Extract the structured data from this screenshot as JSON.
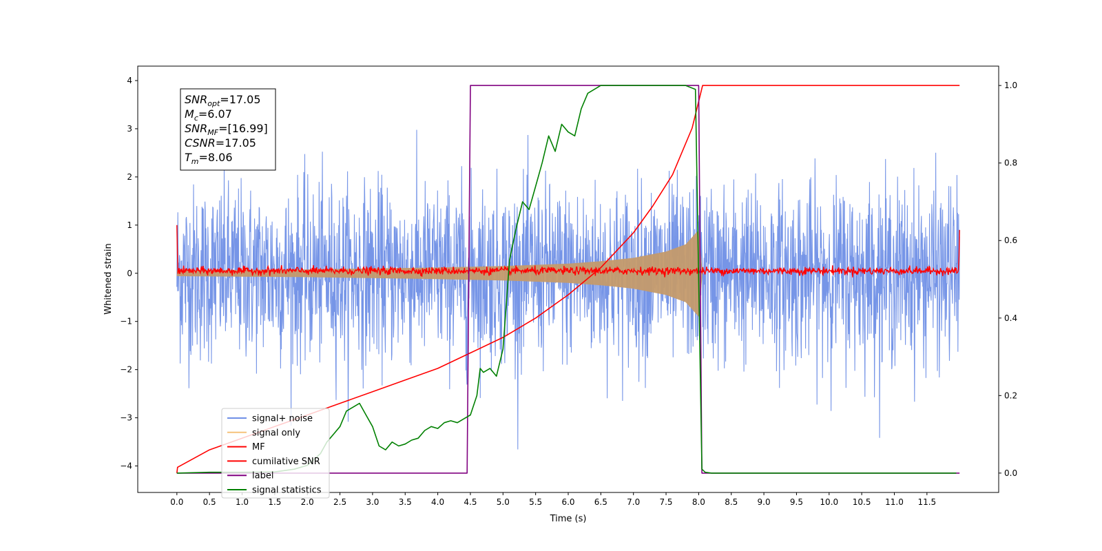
{
  "chart_data": {
    "type": "line",
    "title": "",
    "xlabel": "Time (s)",
    "ylabel": "Whitened strain",
    "ylabel_right": "",
    "xlim": [
      -0.6,
      12.6
    ],
    "ylim": [
      -4.55,
      4.3
    ],
    "ylim_right": [
      -0.05,
      1.05
    ],
    "x_ticks": [
      0.0,
      0.5,
      1.0,
      1.5,
      2.0,
      2.5,
      3.0,
      3.5,
      4.0,
      4.5,
      5.0,
      5.5,
      6.0,
      6.5,
      7.0,
      7.5,
      8.0,
      8.5,
      9.0,
      9.5,
      10.0,
      10.5,
      11.0,
      11.5
    ],
    "x_tick_labels": [
      "0.0",
      "0.5",
      "1.0",
      "1.5",
      "2.0",
      "2.5",
      "3.0",
      "3.5",
      "4.0",
      "4.5",
      "5.0",
      "5.5",
      "6.0",
      "6.5",
      "7.0",
      "7.5",
      "8.0",
      "8.5",
      "9.0",
      "9.5",
      "10.0",
      "10.5",
      "11.0",
      "11.5"
    ],
    "y_ticks": [
      -4,
      -3,
      -2,
      -1,
      0,
      1,
      2,
      3,
      4
    ],
    "y_tick_labels": [
      "−4",
      "−3",
      "−2",
      "−1",
      "0",
      "1",
      "2",
      "3",
      "4"
    ],
    "y_right_ticks": [
      0.0,
      0.2,
      0.4,
      0.6,
      0.8,
      1.0
    ],
    "y_right_tick_labels": [
      "0.0",
      "0.2",
      "0.4",
      "0.6",
      "0.8",
      "1.0"
    ],
    "legend_position": "lower-left",
    "legend": [
      {
        "label": "signal+ noise",
        "color": "#6f8fe6"
      },
      {
        "label": "signal only",
        "color": "#f5c27a"
      },
      {
        "label": "MF",
        "color": "#ff0000"
      },
      {
        "label": "cumilative SNR",
        "color": "#ff0000"
      },
      {
        "label": "label",
        "color": "#800080"
      },
      {
        "label": "signal statistics",
        "color": "#008000"
      }
    ],
    "annotations": [
      {
        "text": "SNR",
        "sub": "opt",
        "value": "=17.05"
      },
      {
        "text": "M",
        "sub": "c",
        "value": "=6.07"
      },
      {
        "text": "SNR",
        "sub": "MF",
        "value": "=[16.99]"
      },
      {
        "text": "CSNR",
        "sub": "",
        "value": "=17.05"
      },
      {
        "text": "T",
        "sub": "m",
        "value": "=8.06"
      }
    ],
    "series": [
      {
        "name": "signal+ noise",
        "axis": "left",
        "color": "#6f8fe6",
        "x_range": [
          0.0,
          12.0
        ],
        "center": 0.0,
        "typical_amplitude": 2.0,
        "peak_min": -4.05,
        "peak_max": 3.85
      },
      {
        "name": "signal only",
        "axis": "left",
        "color": "#f5c27a",
        "envelope": {
          "x": [
            0.0,
            1.0,
            2.0,
            3.0,
            4.0,
            5.0,
            6.0,
            6.5,
            7.0,
            7.5,
            7.8,
            8.0,
            8.06,
            12.0
          ],
          "amplitude": [
            0.06,
            0.07,
            0.08,
            0.1,
            0.12,
            0.15,
            0.2,
            0.25,
            0.32,
            0.45,
            0.6,
            0.9,
            0.0,
            0.0
          ]
        }
      },
      {
        "name": "MF",
        "axis": "left",
        "color": "#ff0000",
        "x_range": [
          0.0,
          12.0
        ],
        "center": 0.05,
        "noise_amplitude": 0.08,
        "edge_values": [
          1.0,
          0.9
        ]
      },
      {
        "name": "cumilative SNR",
        "axis": "right",
        "color": "#ff0000",
        "x": [
          0.0,
          0.01,
          0.5,
          1.0,
          1.5,
          2.0,
          2.5,
          3.0,
          3.5,
          4.0,
          4.5,
          5.0,
          5.5,
          6.0,
          6.5,
          7.0,
          7.3,
          7.6,
          7.9,
          8.06,
          8.5,
          9.0,
          10.0,
          11.0,
          12.0
        ],
        "values": [
          0.0,
          0.015,
          0.06,
          0.09,
          0.12,
          0.15,
          0.18,
          0.21,
          0.24,
          0.27,
          0.31,
          0.35,
          0.4,
          0.46,
          0.53,
          0.62,
          0.69,
          0.77,
          0.89,
          1.0,
          1.0,
          1.0,
          1.0,
          1.0,
          1.0
        ]
      },
      {
        "name": "label",
        "axis": "right",
        "color": "#800080",
        "x": [
          0.0,
          4.45,
          4.5,
          8.0,
          8.05,
          12.0
        ],
        "values": [
          0.0,
          0.0,
          1.0,
          1.0,
          0.0,
          0.0
        ]
      },
      {
        "name": "signal statistics",
        "axis": "right",
        "color": "#008000",
        "x": [
          0.0,
          0.5,
          1.0,
          1.5,
          1.8,
          2.0,
          2.2,
          2.3,
          2.4,
          2.5,
          2.6,
          2.7,
          2.8,
          2.9,
          3.0,
          3.1,
          3.2,
          3.3,
          3.4,
          3.5,
          3.6,
          3.7,
          3.8,
          3.9,
          4.0,
          4.1,
          4.2,
          4.3,
          4.4,
          4.5,
          4.6,
          4.65,
          4.7,
          4.8,
          4.9,
          5.0,
          5.1,
          5.2,
          5.3,
          5.4,
          5.5,
          5.6,
          5.7,
          5.8,
          5.9,
          6.0,
          6.1,
          6.2,
          6.3,
          6.5,
          7.0,
          7.5,
          7.8,
          7.95,
          8.0,
          8.05,
          8.1,
          8.2,
          9.0,
          10.0,
          11.0,
          11.95
        ],
        "values": [
          0.0,
          0.002,
          0.002,
          0.003,
          0.01,
          0.02,
          0.05,
          0.08,
          0.1,
          0.12,
          0.16,
          0.17,
          0.18,
          0.15,
          0.12,
          0.07,
          0.06,
          0.08,
          0.07,
          0.075,
          0.085,
          0.09,
          0.11,
          0.12,
          0.115,
          0.13,
          0.135,
          0.13,
          0.14,
          0.15,
          0.2,
          0.27,
          0.26,
          0.27,
          0.25,
          0.32,
          0.55,
          0.63,
          0.7,
          0.68,
          0.74,
          0.8,
          0.87,
          0.83,
          0.9,
          0.88,
          0.87,
          0.94,
          0.98,
          1.0,
          1.0,
          1.0,
          1.0,
          0.99,
          0.5,
          0.01,
          0.002,
          0.0,
          0.0,
          0.0,
          0.0,
          0.0
        ]
      }
    ]
  }
}
